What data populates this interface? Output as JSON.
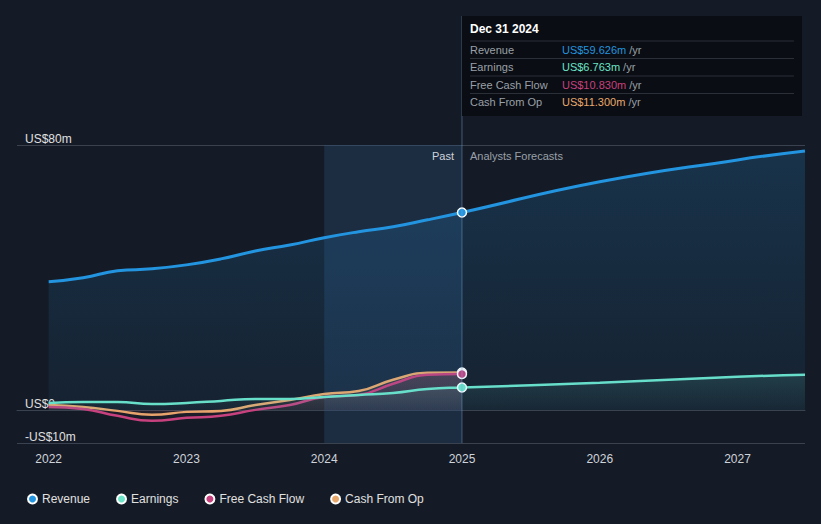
{
  "chart_data": {
    "type": "line",
    "x": [
      2022,
      2022.25,
      2022.5,
      2022.75,
      2023,
      2023.25,
      2023.5,
      2023.75,
      2024,
      2024.25,
      2024.5,
      2024.75,
      2025,
      2026,
      2027,
      2027.49
    ],
    "xlim": [
      2021.77,
      2027.49
    ],
    "xticks": [
      2022,
      2023,
      2024,
      2025,
      2026,
      2027
    ],
    "ylim": [
      -10,
      80
    ],
    "yticks": [
      {
        "value": -10,
        "label": "-US$10m"
      },
      {
        "value": 0,
        "label": "US$0"
      },
      {
        "value": 80,
        "label": "US$80m"
      }
    ],
    "grid": true,
    "legend": "bottom",
    "series": [
      {
        "name": "Revenue",
        "color": "#2394df",
        "values": [
          38.7,
          39.9,
          42.0,
          42.6,
          43.8,
          45.6,
          48.0,
          49.8,
          52.0,
          53.8,
          55.3,
          57.4,
          59.626,
          68.9,
          75.5,
          78.2
        ]
      },
      {
        "name": "Earnings",
        "color": "#6ce4c8",
        "values": [
          2.1,
          2.4,
          2.4,
          1.8,
          2.1,
          2.7,
          3.3,
          3.3,
          3.9,
          4.5,
          5.1,
          6.3,
          6.763,
          8.2,
          10.0,
          10.6
        ]
      },
      {
        "name": "Free Cash Flow",
        "color": "#c6417d",
        "values": [
          0.9,
          0.3,
          -1.8,
          -3.3,
          -2.4,
          -1.8,
          0,
          1.5,
          3.9,
          4.5,
          7.9,
          10.6,
          10.83,
          null,
          null,
          null
        ]
      },
      {
        "name": "Cash From Op",
        "color": "#e9a86b",
        "values": [
          1.5,
          0.9,
          -0.3,
          -1.5,
          -0.6,
          -0.3,
          1.5,
          3.0,
          4.8,
          5.7,
          9.1,
          11.2,
          11.3,
          null,
          null,
          null
        ]
      }
    ],
    "highlight": [
      2024,
      2025
    ],
    "forecast_start": 2025,
    "period_labels": [
      "Past",
      "Analysts Forecasts"
    ],
    "tooltip": {
      "title": "Dec 31 2024",
      "rows": [
        {
          "value": "US$59.626m",
          "unit": "/yr"
        },
        {
          "value": "US$6.763m",
          "unit": "/yr"
        },
        {
          "value": "US$10.830m",
          "unit": "/yr"
        },
        {
          "value": "US$11.300m",
          "unit": "/yr"
        }
      ]
    }
  }
}
